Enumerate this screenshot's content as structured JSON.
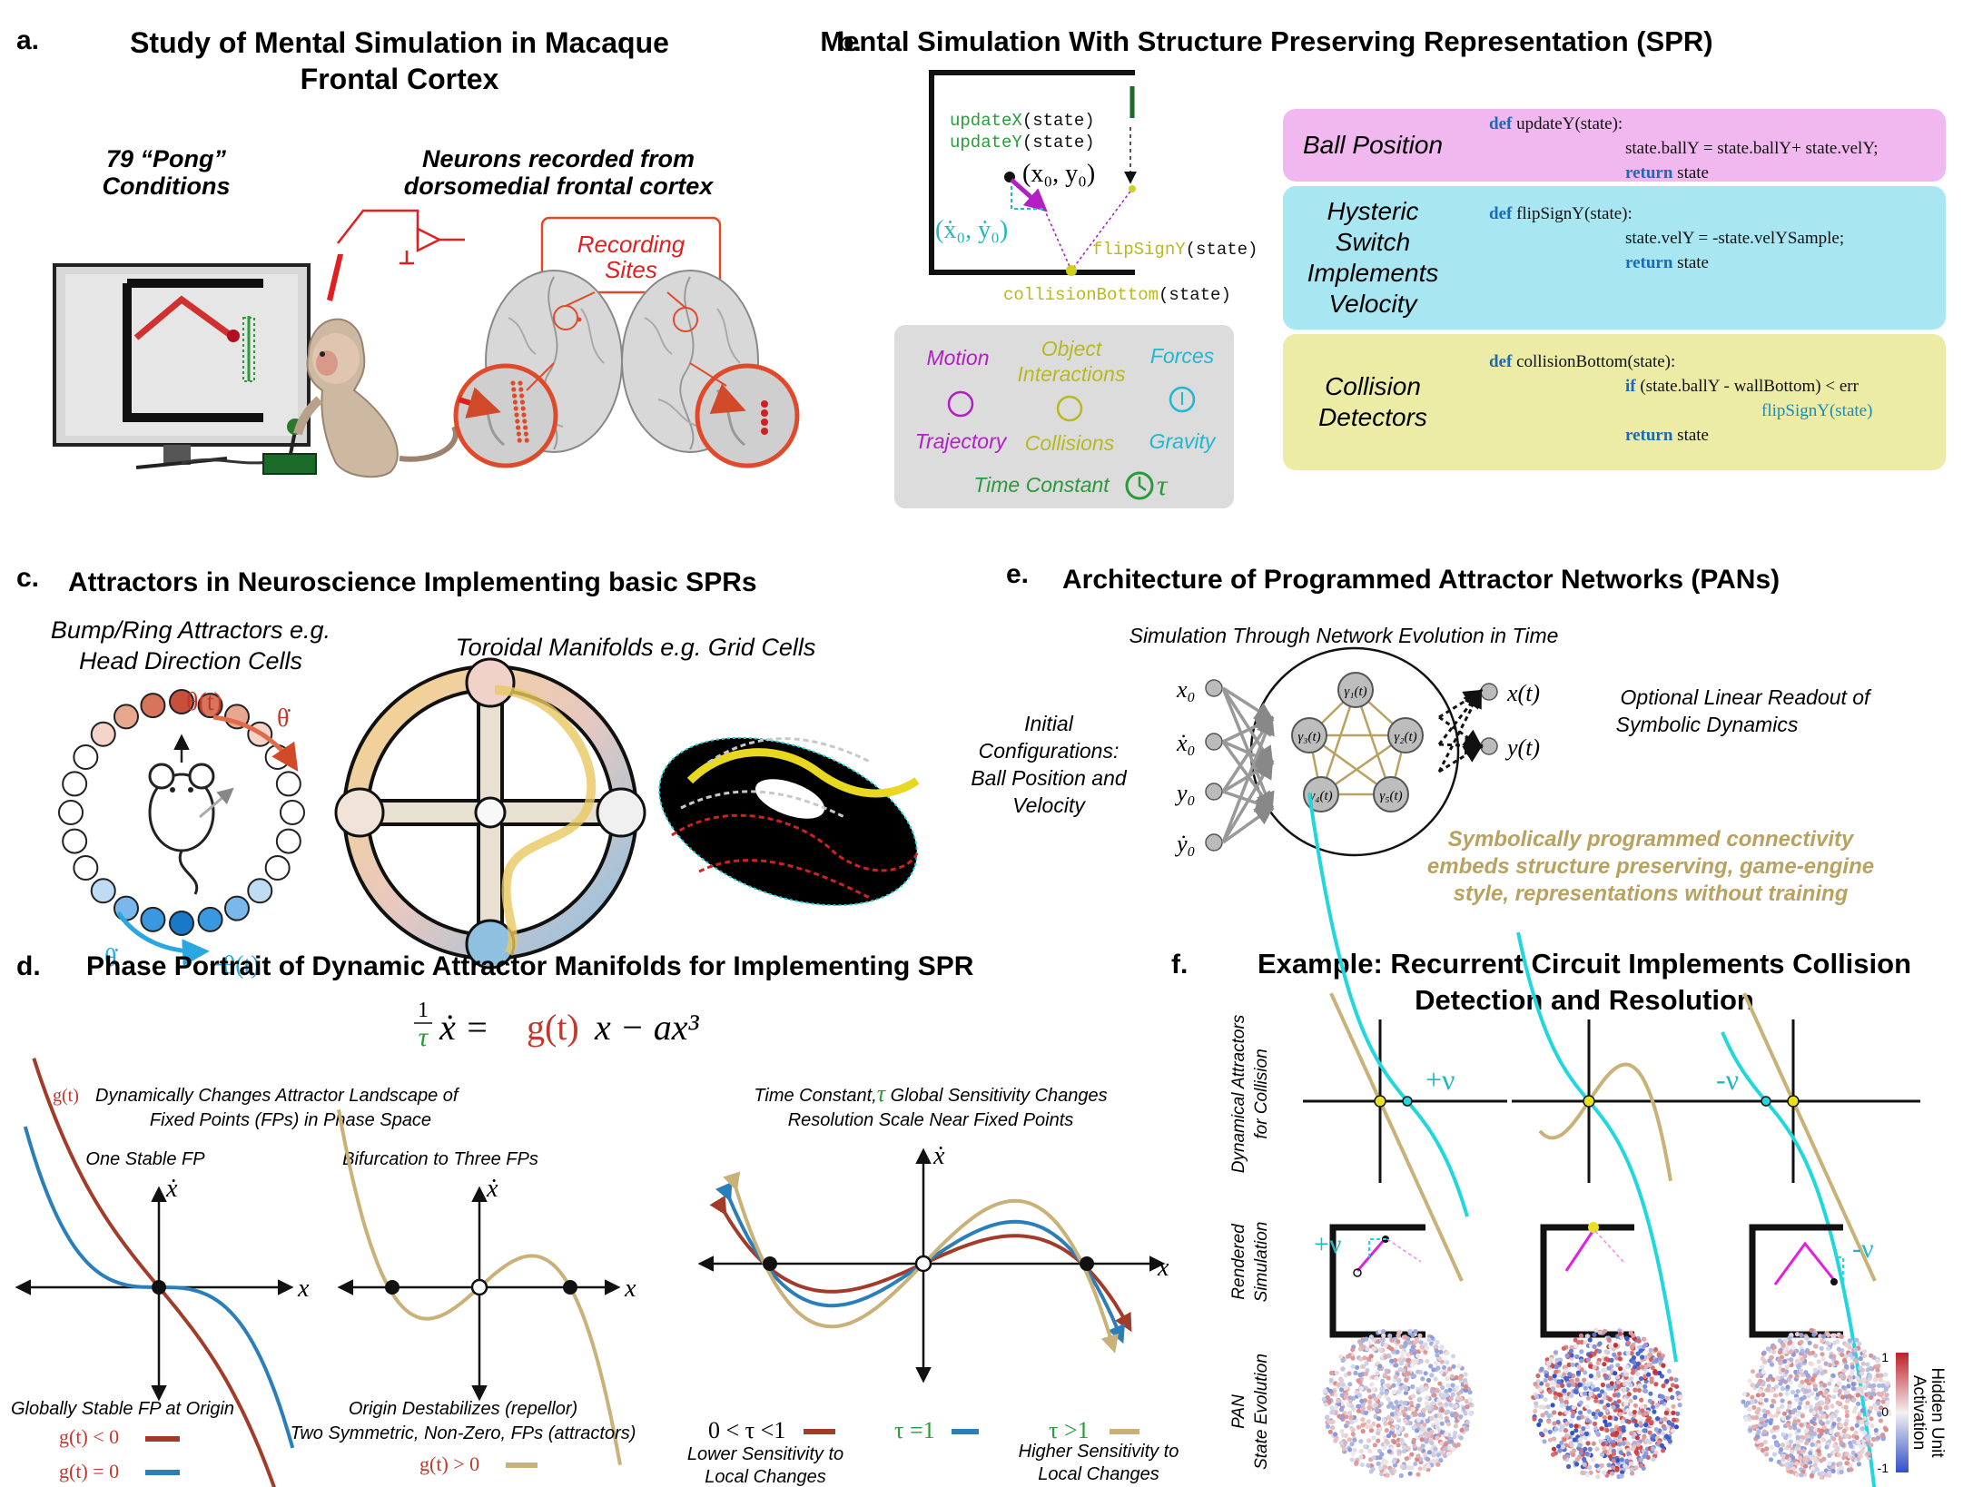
{
  "panel_a": {
    "letter": "a.",
    "title_line1": "Study of Mental Simulation in Macaque",
    "title_line2": "Frontal Cortex",
    "conditions_line1": "79 “Pong”",
    "conditions_line2": "Conditions",
    "neurons_line1": "Neurons recorded from",
    "neurons_line2": "dorsomedial frontal cortex",
    "recording_line1": "Recording",
    "recording_line2": "Sites"
  },
  "panel_b": {
    "letter": "b.",
    "title": "Mental Simulation With Structure Preserving Representation (SPR)",
    "diagram": {
      "updateX": "updateX",
      "updateY": "updateY",
      "state_arg": "(state)",
      "pos": "(x₀, y₀)",
      "vel": "(ẋ₀, ẏ₀)",
      "flip": "flipSignY",
      "collision": "collisionBottom"
    },
    "legend": {
      "motion": "Motion",
      "object1": "Object",
      "object2": "Interactions",
      "forces": "Forces",
      "trajectory": "Trajectory",
      "collisions": "Collisions",
      "gravity": "Gravity",
      "time_constant": "Time Constant",
      "tau": "τ"
    },
    "code_blocks": [
      {
        "label_lines": [
          "Ball Position"
        ],
        "color": "#f0b8ee",
        "code": [
          {
            "kw": "def",
            "text": " updateY(state):"
          },
          {
            "kw": "",
            "text": "state.ballY = state.ballY+ state.velY;"
          },
          {
            "kw": "return",
            "text": " state"
          }
        ]
      },
      {
        "label_lines": [
          "Hysteric",
          "Switch",
          "Implements",
          "Velocity"
        ],
        "color": "#a8e6f2",
        "code": [
          {
            "kw": "def",
            "text": " flipSignY(state):"
          },
          {
            "kw": "",
            "text": "state.velY  = -state.velYSample;"
          },
          {
            "kw": "return",
            "text": " state"
          }
        ]
      },
      {
        "label_lines": [
          "Collision",
          "Detectors"
        ],
        "color": "#ececa6",
        "code": [
          {
            "kw": "def",
            "text": " collisionBottom(state):"
          },
          {
            "kw": "if",
            "text": " (state.ballY - wallBottom) < err"
          },
          {
            "kw": "",
            "text": "flipSignY(state)"
          },
          {
            "kw": "return",
            "text": " state"
          }
        ]
      }
    ]
  },
  "panel_c": {
    "letter": "c.",
    "title": "Attractors in Neuroscience Implementing basic SPRs",
    "bump_line1": "Bump/Ring Attractors e.g.",
    "bump_line2": "Head Direction Cells",
    "toroid": "Toroidal Manifolds e.g. Grid Cells",
    "theta_t": "θ(t)",
    "theta_dot": "θ̇",
    "neg_theta_t": "−θ(t)"
  },
  "panel_d": {
    "letter": "d.",
    "title": "Phase Portrait of Dynamic Attractor Manifolds for Implementing SPR",
    "eq_lhs": "ẋ =",
    "eq_g": "g(t)",
    "eq_rhs": "x − ax³",
    "eq_frac": "1",
    "eq_tau": "τ",
    "g_desc_g": "g(t)",
    "g_desc_line1": "Dynamically Changes Attractor Landscape of",
    "g_desc_line2": "Fixed Points (FPs) in Phase Space",
    "tau_desc_line1": "Time Constant,",
    "tau_desc_tail": " Global Sensitivity Changes",
    "tau_desc_line2": "Resolution Scale Near Fixed Points",
    "one_stable": "One Stable FP",
    "bifurcation": "Bifurcation to Three FPs",
    "xdot": "ẋ",
    "x": "x",
    "global_stable": "Globally Stable FP at Origin",
    "g_lt": "g(t) < 0",
    "g_eq": "g(t) = 0",
    "origin_line1": "Origin Destabilizes (repellor)",
    "origin_line2": "Two Symmetric, Non-Zero, FPs (attractors)",
    "g_gt": "g(t) > 0",
    "tau_lt": "0 < τ <1",
    "tau_eq": "τ =1",
    "tau_gt": "τ >1",
    "lower_line1": "Lower Sensitivity to",
    "lower_line2": "Local Changes",
    "higher_line1": "Higher Sensitivity to",
    "higher_line2": "Local Changes"
  },
  "panel_e": {
    "letter": "e.",
    "title": "Architecture of Programmed Attractor Networks (PANs)",
    "simulation": "Simulation Through Network Evolution in Time",
    "initial_line1": "Initial",
    "initial_line2": "Configurations:",
    "initial_line3": "Ball Position and",
    "initial_line4": "Velocity",
    "readout_line1": "Optional Linear Readout of",
    "readout_line2": "Symbolic Dynamics",
    "inputs": [
      "x₀",
      "ẋ₀",
      "y₀",
      "ẏ₀"
    ],
    "outputs": [
      "x(t)",
      "y(t)"
    ],
    "nodes": [
      "γ₁(t)",
      "γ₂(t)",
      "γ₃(t)",
      "γ₄(t)",
      "γ₅(t)"
    ],
    "symbolic_line1": "Symbolically programmed connectivity",
    "symbolic_line2": "embeds structure preserving, game-engine",
    "symbolic_line3": "style, representations without training"
  },
  "panel_f": {
    "letter": "f.",
    "title_line1": "Example: Recurrent Circuit Implements Collision",
    "title_line2": "Detection and Resolution",
    "row1_line1": "Dynamical Attractors",
    "row1_line2": "for Collision",
    "row2_line1": "Rendered",
    "row2_line2": "Simulation",
    "row3_line1": "PAN",
    "row3_line2": "State Evolution",
    "plus_v": "+ν",
    "minus_v": "-ν",
    "colorbar_label_line1": "Hidden Unit",
    "colorbar_label_line2": "Activation",
    "cb_max": "1",
    "cb_mid": "0",
    "cb_min": "-1"
  },
  "colors": {
    "red": "#c0392b",
    "brown": "#a33b2a",
    "blue": "#2a7fba",
    "tan": "#c9b177",
    "cyan": "#1fd7dd",
    "magenta": "#b21fc4",
    "green": "#2a9a3a",
    "yellow": "#c8c81e",
    "gold": "#b9a15f"
  }
}
